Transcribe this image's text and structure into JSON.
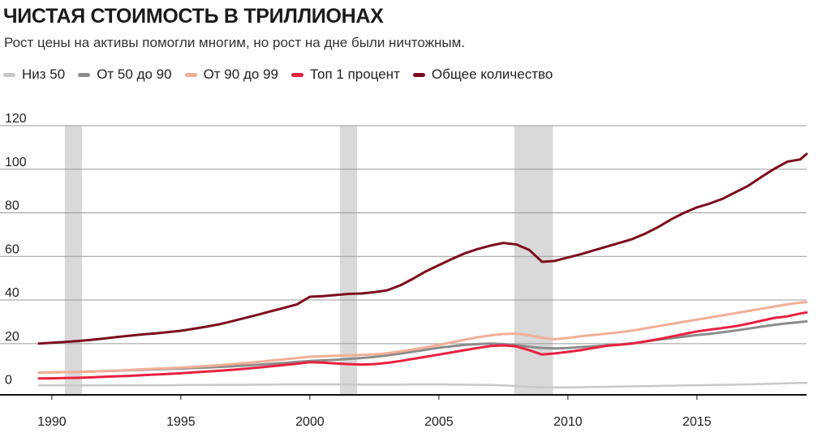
{
  "header": {
    "title": "ЧИСТАЯ СТОИМОСТЬ В ТРИЛЛИОНАХ",
    "subtitle": "Рост цены на активы помогли многим, но рост на дне были ничтожным."
  },
  "legend": [
    {
      "label": "Низ 50",
      "color": "#c8c8c8"
    },
    {
      "label": "От 50 до 90",
      "color": "#8c8c8c"
    },
    {
      "label": "От 90 до 99",
      "color": "#f2ae97"
    },
    {
      "label": "Топ 1 процент",
      "color": "#e8213f"
    },
    {
      "label": "Общее количество",
      "color": "#7d0c1c"
    }
  ],
  "chart_data": {
    "type": "line",
    "title": "ЧИСТАЯ СТОИМОСТЬ В ТРИЛЛИОНАХ",
    "subtitle": "Рост цены на активы помогли многим, но рост на дне были ничтожным.",
    "xlim": [
      1989.5,
      2019.25
    ],
    "ylim": [
      -3.5,
      120
    ],
    "x_ticks": [
      1990,
      1995,
      2000,
      2005,
      2010,
      2015
    ],
    "y_ticks": [
      0,
      20,
      40,
      60,
      80,
      100,
      120
    ],
    "grid": "horizontal",
    "legend_position": "top-left",
    "shaded_periods": [
      [
        1990.5,
        1991.17
      ],
      [
        2001.17,
        2001.83
      ],
      [
        2007.92,
        2009.42
      ]
    ],
    "x": [
      1989.5,
      1990,
      1990.5,
      1991,
      1991.5,
      1992,
      1992.5,
      1993,
      1993.5,
      1994,
      1994.5,
      1995,
      1995.5,
      1996,
      1996.5,
      1997,
      1997.5,
      1998,
      1998.5,
      1999,
      1999.5,
      2000,
      2000.5,
      2001,
      2001.5,
      2002,
      2002.5,
      2003,
      2003.5,
      2004,
      2004.5,
      2005,
      2005.5,
      2006,
      2006.5,
      2007,
      2007.5,
      2008,
      2008.5,
      2009,
      2009.5,
      2010,
      2010.5,
      2011,
      2011.5,
      2012,
      2012.5,
      2013,
      2013.5,
      2014,
      2014.5,
      2015,
      2015.5,
      2016,
      2016.5,
      2017,
      2017.5,
      2018,
      2018.5,
      2019,
      2019.25
    ],
    "series": [
      {
        "name": "Низ 50",
        "color": "#c8c8c8",
        "values": [
          0.8,
          0.8,
          0.8,
          0.8,
          0.8,
          0.8,
          0.9,
          0.9,
          0.9,
          0.9,
          0.9,
          1.0,
          1.0,
          1.0,
          1.1,
          1.1,
          1.1,
          1.2,
          1.2,
          1.3,
          1.3,
          1.3,
          1.3,
          1.3,
          1.3,
          1.2,
          1.2,
          1.2,
          1.2,
          1.3,
          1.3,
          1.3,
          1.2,
          1.2,
          1.1,
          1.0,
          0.8,
          0.5,
          0.2,
          0.0,
          -0.1,
          -0.1,
          0.0,
          0.1,
          0.2,
          0.3,
          0.4,
          0.5,
          0.6,
          0.7,
          0.8,
          0.9,
          1.0,
          1.1,
          1.2,
          1.3,
          1.5,
          1.6,
          1.8,
          2.0,
          2.0
        ]
      },
      {
        "name": "От 50 до 90",
        "color": "#8c8c8c",
        "values": [
          6.7,
          6.8,
          6.9,
          7.0,
          7.2,
          7.4,
          7.6,
          7.8,
          8.0,
          8.2,
          8.4,
          8.6,
          8.8,
          9.0,
          9.3,
          9.6,
          10.0,
          10.3,
          10.7,
          11.1,
          11.6,
          12.0,
          12.3,
          12.6,
          13.0,
          13.4,
          13.9,
          14.6,
          15.4,
          16.3,
          17.2,
          18.1,
          18.8,
          19.4,
          19.8,
          20.0,
          19.8,
          19.3,
          18.6,
          18.0,
          17.8,
          18.0,
          18.4,
          18.8,
          19.2,
          19.6,
          20.2,
          21.0,
          21.8,
          22.5,
          23.2,
          23.9,
          24.5,
          25.2,
          26.0,
          26.9,
          27.8,
          28.6,
          29.3,
          29.9,
          30.2
        ]
      },
      {
        "name": "От 90 до 99",
        "color": "#f2ae97",
        "values": [
          6.6,
          6.8,
          6.9,
          7.0,
          7.2,
          7.4,
          7.6,
          7.9,
          8.2,
          8.5,
          8.7,
          9.0,
          9.3,
          9.7,
          10.1,
          10.6,
          11.1,
          11.6,
          12.2,
          12.8,
          13.4,
          14.0,
          14.2,
          14.4,
          14.6,
          14.8,
          15.1,
          15.6,
          16.4,
          17.3,
          18.3,
          19.4,
          20.6,
          21.8,
          22.9,
          23.8,
          24.4,
          24.6,
          23.8,
          22.6,
          22.0,
          22.6,
          23.4,
          24.0,
          24.6,
          25.2,
          26.0,
          27.0,
          28.0,
          29.0,
          30.0,
          31.0,
          32.0,
          33.0,
          34.0,
          35.0,
          36.0,
          37.0,
          38.0,
          38.8,
          39.0
        ]
      },
      {
        "name": "Топ 1 процент",
        "color": "#e8213f",
        "values": [
          4.0,
          4.1,
          4.2,
          4.3,
          4.5,
          4.8,
          5.0,
          5.2,
          5.5,
          5.8,
          6.1,
          6.4,
          6.8,
          7.2,
          7.6,
          8.0,
          8.5,
          9.0,
          9.6,
          10.2,
          10.8,
          11.5,
          11.3,
          10.9,
          10.6,
          10.4,
          10.6,
          11.2,
          12.0,
          13.0,
          14.0,
          15.0,
          16.0,
          17.0,
          18.0,
          18.9,
          19.2,
          18.7,
          17.0,
          15.0,
          15.5,
          16.2,
          17.0,
          18.0,
          19.0,
          19.5,
          20.0,
          21.0,
          22.0,
          23.2,
          24.4,
          25.6,
          26.4,
          27.2,
          28.0,
          29.2,
          30.5,
          31.8,
          32.5,
          33.8,
          34.3
        ]
      },
      {
        "name": "Общее количество",
        "color": "#7d0c1c",
        "values": [
          20.0,
          20.4,
          20.8,
          21.2,
          21.7,
          22.3,
          23.0,
          23.6,
          24.2,
          24.7,
          25.3,
          25.9,
          26.8,
          27.8,
          28.9,
          30.3,
          31.8,
          33.3,
          34.9,
          36.4,
          38.0,
          41.5,
          41.8,
          42.3,
          42.8,
          43.0,
          43.6,
          44.5,
          46.7,
          49.8,
          53.2,
          56.0,
          58.8,
          61.4,
          63.4,
          65.0,
          66.2,
          65.5,
          63.0,
          57.5,
          58.0,
          59.5,
          61.0,
          62.8,
          64.5,
          66.2,
          68.0,
          70.5,
          73.5,
          77.0,
          80.0,
          82.5,
          84.3,
          86.5,
          89.5,
          92.5,
          96.5,
          100.2,
          103.5,
          104.5,
          107.0
        ]
      }
    ]
  }
}
